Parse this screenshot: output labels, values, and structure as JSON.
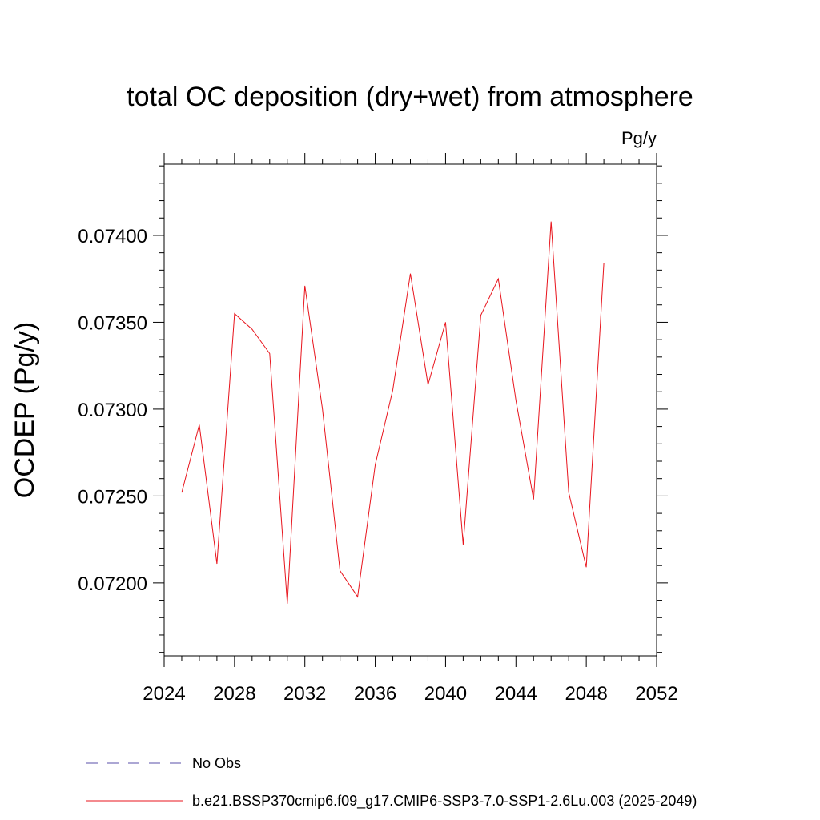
{
  "chart_data": {
    "type": "line",
    "title": "total OC deposition (dry+wet) from atmosphere",
    "units": "Pg/y",
    "ylabel": "OCDEP  (Pg/y)",
    "xlabel": "",
    "xlim": [
      2024,
      2052
    ],
    "ylim": [
      0.07158,
      0.07441
    ],
    "x_ticks": [
      2024,
      2028,
      2032,
      2036,
      2040,
      2044,
      2048,
      2052
    ],
    "y_ticks": [
      0.072,
      0.0725,
      0.073,
      0.0735,
      0.074
    ],
    "y_tick_labels": [
      "0.07200",
      "0.07250",
      "0.07300",
      "0.07350",
      "0.07400"
    ],
    "grid": false,
    "legend_position": "bottom",
    "series": [
      {
        "name": "No Obs",
        "color": "#5a4fa8",
        "style": "dashed",
        "x": [],
        "values": []
      },
      {
        "name": "b.e21.BSSP370cmip6.f09_g17.CMIP6-SSP3-7.0-SSP1-2.6Lu.003 (2025-2049)",
        "color": "#e8141c",
        "style": "solid",
        "x": [
          2025,
          2026,
          2027,
          2028,
          2029,
          2030,
          2031,
          2032,
          2033,
          2034,
          2035,
          2036,
          2037,
          2038,
          2039,
          2040,
          2041,
          2042,
          2043,
          2044,
          2045,
          2046,
          2047,
          2048,
          2049
        ],
        "values": [
          0.07252,
          0.07291,
          0.07211,
          0.07355,
          0.07346,
          0.07332,
          0.07188,
          0.07371,
          0.073,
          0.07207,
          0.07192,
          0.07268,
          0.07311,
          0.07378,
          0.07314,
          0.0735,
          0.07222,
          0.07354,
          0.07375,
          0.07305,
          0.07248,
          0.07408,
          0.07252,
          0.07209,
          0.07384
        ]
      }
    ]
  }
}
